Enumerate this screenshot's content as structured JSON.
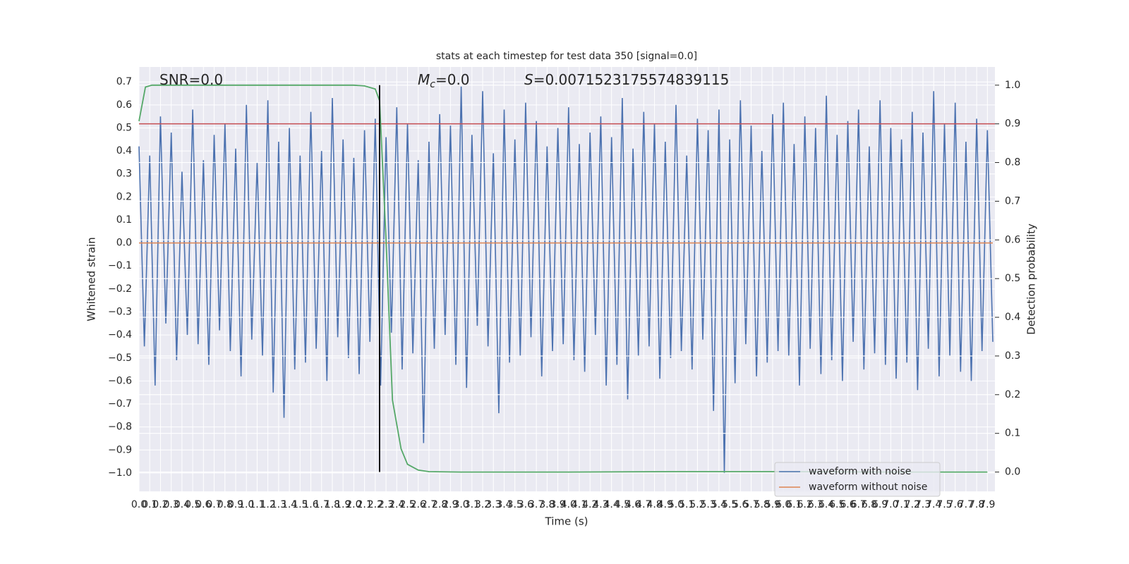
{
  "chart_data": {
    "type": "line",
    "title": "stats at each timestep for test data 350 [signal=0.0]",
    "xlabel": "Time (s)",
    "ylabel": "Whitened strain",
    "y2label": "Detection probability",
    "xlim": [
      0,
      7.97
    ],
    "ylim": [
      -1.08,
      0.765
    ],
    "y2lim": [
      -0.05,
      1.047
    ],
    "grid": true,
    "legend": "lower right",
    "xticks": [
      {
        "value": 0,
        "label": "0.0"
      },
      0.1,
      0.2,
      0.3,
      0.4,
      0.5,
      0.6,
      0.7,
      0.8,
      0.9,
      {
        "value": 1,
        "label": "1.0"
      },
      1.1,
      1.2,
      1.3,
      1.4,
      1.5,
      1.6,
      1.7,
      1.8,
      1.9,
      {
        "value": 2,
        "label": "2.0"
      },
      2.1,
      2.2,
      2.3,
      2.4,
      2.5,
      2.6,
      2.7,
      2.8,
      2.9,
      {
        "value": 3,
        "label": "3.0"
      },
      3.1,
      3.2,
      3.3,
      3.4,
      3.5,
      3.6,
      3.7,
      3.8,
      3.9,
      {
        "value": 4,
        "label": "4.0"
      },
      4.1,
      4.2,
      4.3,
      4.4,
      4.5,
      4.6,
      4.7,
      4.8,
      4.9,
      {
        "value": 5,
        "label": "5.0"
      },
      5.1,
      5.2,
      5.3,
      5.4,
      5.5,
      5.6,
      5.7,
      5.8,
      5.9,
      {
        "value": 6,
        "label": "6.0"
      },
      6.1,
      6.2,
      6.3,
      6.4,
      6.5,
      6.6,
      6.7,
      6.8,
      6.9,
      {
        "value": 7,
        "label": "7.0"
      },
      7.1,
      7.2,
      7.3,
      7.4,
      7.5,
      7.6,
      7.7,
      7.8,
      7.9
    ],
    "yticks": [
      {
        "value": -1,
        "label": "−1.0"
      },
      {
        "value": -0.9,
        "label": "−0.9"
      },
      {
        "value": -0.8,
        "label": "−0.8"
      },
      {
        "value": -0.7,
        "label": "−0.7"
      },
      {
        "value": -0.6,
        "label": "−0.6"
      },
      {
        "value": -0.5,
        "label": "−0.5"
      },
      {
        "value": -0.4,
        "label": "−0.4"
      },
      {
        "value": -0.3,
        "label": "−0.3"
      },
      {
        "value": -0.2,
        "label": "−0.2"
      },
      {
        "value": -0.1,
        "label": "−0.1"
      },
      {
        "value": 0,
        "label": "0.0"
      },
      0.1,
      0.2,
      0.3,
      0.4,
      0.5,
      0.6,
      0.7
    ],
    "y2ticks": [
      {
        "value": 0,
        "label": "0.0"
      },
      0.1,
      0.2,
      0.3,
      0.4,
      0.5,
      0.6,
      0.7,
      0.8,
      0.9,
      {
        "value": 1,
        "label": "1.0"
      }
    ],
    "series": [
      {
        "name": "waveform with noise",
        "color": "#4c72b0",
        "x": [
          0,
          0.05,
          0.1,
          0.15,
          0.2,
          0.25,
          0.3,
          0.35,
          0.4,
          0.45,
          0.5,
          0.55,
          0.6,
          0.65,
          0.7,
          0.75,
          0.8,
          0.85,
          0.9,
          0.95,
          1,
          1.05,
          1.1,
          1.15,
          1.2,
          1.25,
          1.3,
          1.35,
          1.4,
          1.45,
          1.5,
          1.55,
          1.6,
          1.65,
          1.7,
          1.75,
          1.8,
          1.85,
          1.9,
          1.95,
          2,
          2.05,
          2.1,
          2.15,
          2.2,
          2.25,
          2.3,
          2.35,
          2.4,
          2.45,
          2.5,
          2.55,
          2.6,
          2.65,
          2.7,
          2.75,
          2.8,
          2.85,
          2.9,
          2.95,
          3,
          3.05,
          3.1,
          3.15,
          3.2,
          3.25,
          3.3,
          3.35,
          3.4,
          3.45,
          3.5,
          3.55,
          3.6,
          3.65,
          3.7,
          3.75,
          3.8,
          3.85,
          3.9,
          3.95,
          4,
          4.05,
          4.1,
          4.15,
          4.2,
          4.25,
          4.3,
          4.35,
          4.4,
          4.45,
          4.5,
          4.55,
          4.6,
          4.65,
          4.7,
          4.75,
          4.8,
          4.85,
          4.9,
          4.95,
          5,
          5.05,
          5.1,
          5.15,
          5.2,
          5.25,
          5.3,
          5.35,
          5.4,
          5.45,
          5.5,
          5.55,
          5.6,
          5.65,
          5.7,
          5.75,
          5.8,
          5.85,
          5.9,
          5.95,
          6,
          6.05,
          6.1,
          6.15,
          6.2,
          6.25,
          6.3,
          6.35,
          6.4,
          6.45,
          6.5,
          6.55,
          6.6,
          6.65,
          6.7,
          6.75,
          6.8,
          6.85,
          6.9,
          6.95,
          7,
          7.05,
          7.1,
          7.15,
          7.2,
          7.25,
          7.3,
          7.35,
          7.4,
          7.45,
          7.5,
          7.55,
          7.6,
          7.65,
          7.7,
          7.75,
          7.8,
          7.85,
          7.9,
          7.95
        ],
        "values": [
          0.42,
          -0.45,
          0.38,
          -0.62,
          0.55,
          -0.35,
          0.48,
          -0.51,
          0.31,
          -0.4,
          0.58,
          -0.44,
          0.36,
          -0.53,
          0.47,
          -0.38,
          0.52,
          -0.47,
          0.41,
          -0.58,
          0.6,
          -0.42,
          0.35,
          -0.49,
          0.62,
          -0.65,
          0.44,
          -0.76,
          0.5,
          -0.55,
          0.38,
          -0.52,
          0.57,
          -0.46,
          0.4,
          -0.6,
          0.63,
          -0.41,
          0.45,
          -0.5,
          0.37,
          -0.57,
          0.49,
          -0.43,
          0.54,
          -0.62,
          0.46,
          -0.39,
          0.59,
          -0.55,
          0.52,
          -0.48,
          0.36,
          -0.87,
          0.44,
          -0.46,
          0.56,
          -0.4,
          0.51,
          -0.53,
          0.68,
          -0.63,
          0.47,
          -0.36,
          0.66,
          -0.45,
          0.39,
          -0.74,
          0.58,
          -0.52,
          0.45,
          -0.49,
          0.61,
          -0.41,
          0.53,
          -0.58,
          0.42,
          -0.47,
          0.5,
          -0.44,
          0.59,
          -0.51,
          0.43,
          -0.56,
          0.48,
          -0.4,
          0.55,
          -0.62,
          0.46,
          -0.53,
          0.63,
          -0.68,
          0.41,
          -0.49,
          0.57,
          -0.45,
          0.52,
          -0.59,
          0.44,
          -0.5,
          0.6,
          -0.47,
          0.38,
          -0.55,
          0.54,
          -0.42,
          0.49,
          -0.73,
          0.58,
          -1.0,
          0.45,
          -0.61,
          0.62,
          -0.44,
          0.51,
          -0.58,
          0.4,
          -0.52,
          0.56,
          -0.47,
          0.61,
          -0.49,
          0.43,
          -0.62,
          0.55,
          -0.46,
          0.5,
          -0.57,
          0.64,
          -0.51,
          0.47,
          -0.6,
          0.53,
          -0.43,
          0.58,
          -0.55,
          0.42,
          -0.48,
          0.62,
          -0.53,
          0.5,
          -0.59,
          0.45,
          -0.52,
          0.57,
          -0.64,
          0.48,
          -0.46,
          0.66,
          -0.58,
          0.52,
          -0.49,
          0.61,
          -0.56,
          0.44,
          -0.6,
          0.54,
          -0.47,
          0.49,
          -0.43
        ]
      },
      {
        "name": "waveform without noise",
        "color": "#dd8452",
        "x": [
          0,
          7.95
        ],
        "values": [
          0,
          0
        ]
      }
    ],
    "probability": {
      "color": "#55a868",
      "axis": "y2",
      "x": [
        0,
        0.06,
        0.12,
        0.3,
        0.6,
        1,
        1.5,
        2,
        2.1,
        2.2,
        2.24,
        2.3,
        2.36,
        2.44,
        2.5,
        2.6,
        2.7,
        3,
        4,
        5,
        6,
        7,
        7.9
      ],
      "values": [
        0.907,
        0.995,
        1.0,
        1.0,
        1.0,
        1.0,
        1.0,
        1.0,
        0.998,
        0.99,
        0.96,
        0.6,
        0.186,
        0.06,
        0.02,
        0.005,
        0.001,
        0,
        0,
        0.001,
        0.001,
        0,
        0
      ]
    },
    "threshold": {
      "value": 0.9,
      "axis": "y2",
      "color": "#c44e52"
    },
    "vline": {
      "x": 2.24,
      "ymin": 0,
      "ymax": 1,
      "axis": "y2",
      "color": "#000000"
    },
    "annotations": [
      {
        "text": "SNR=0.0"
      },
      {
        "symbol": "M",
        "subscript": "c",
        "text": "=0.0"
      },
      {
        "symbol": "S",
        "text": "=0.0071523175574839115"
      }
    ]
  }
}
